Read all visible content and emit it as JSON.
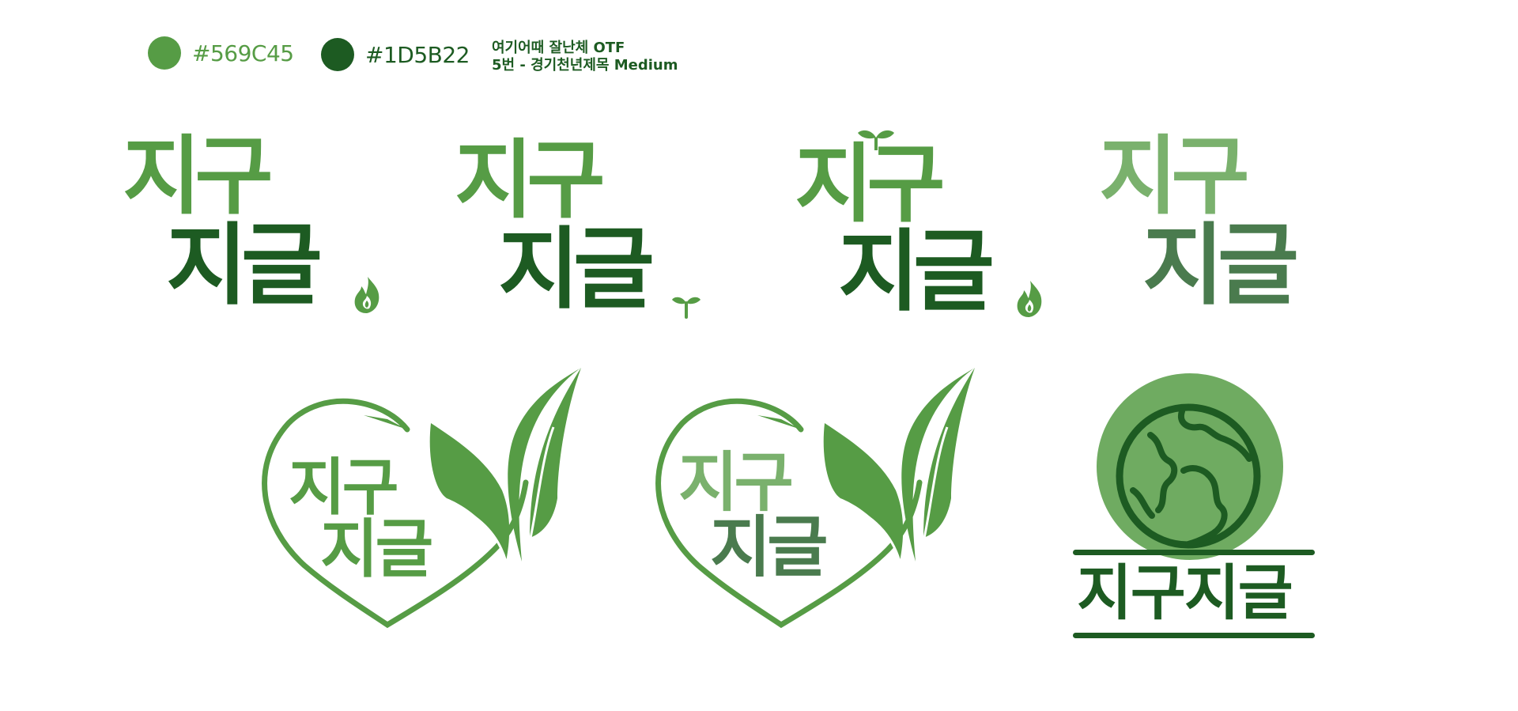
{
  "colors": {
    "primary_hex": "#569C45",
    "secondary_hex": "#1D5B22"
  },
  "font_notes": {
    "line1": "여기어때 잘난체 OTF",
    "line2": "5번 - 경기천년제목 Medium"
  },
  "logo_text": {
    "top": "지구",
    "bottom": "지글",
    "combined": "지구지글"
  },
  "icons": [
    "fire-icon",
    "sprout-icon",
    "leaf-icon",
    "globe-icon",
    "heart-outline-icon"
  ]
}
